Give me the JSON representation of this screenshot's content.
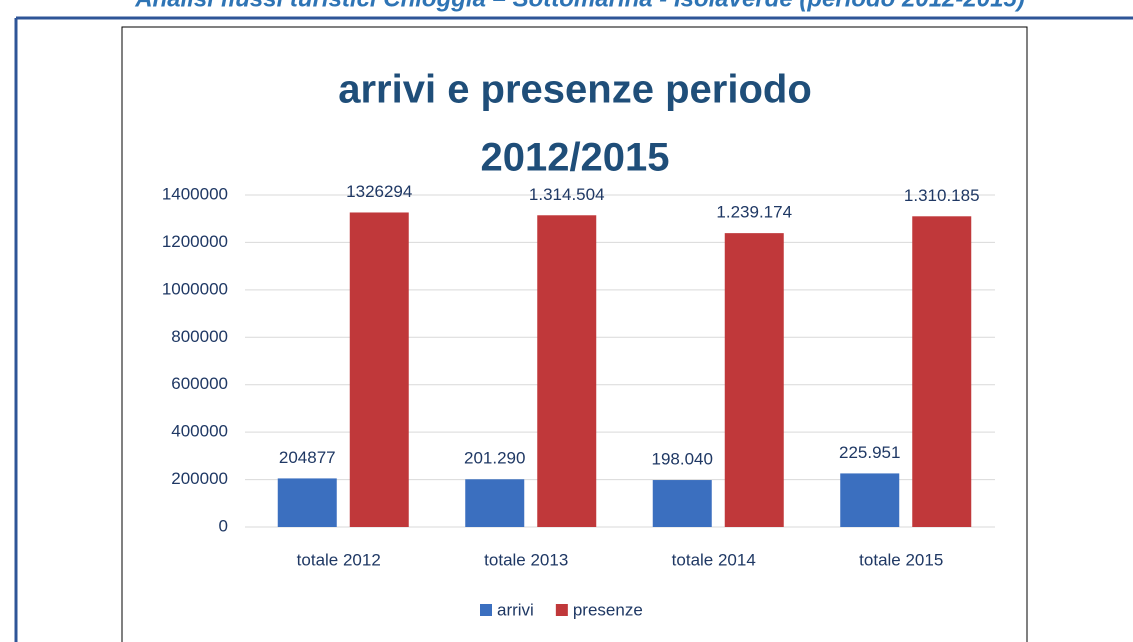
{
  "header": {
    "title": "Analisi flussi turistici Chioggia – Sottomarina - Isolaverde (periodo 2012-2015)"
  },
  "chart_data": {
    "type": "bar",
    "title": [
      "arrivi e presenze periodo",
      "2012/2015"
    ],
    "categories": [
      "totale 2012",
      "totale 2013",
      "totale 2014",
      "totale 2015"
    ],
    "series": [
      {
        "name": "arrivi",
        "color": "#3b6fbf",
        "values": [
          204877,
          201290,
          198040,
          225951
        ],
        "value_labels": [
          "204877",
          "201.290",
          "198.040",
          "225.951"
        ]
      },
      {
        "name": "presenze",
        "color": "#c0383a",
        "values": [
          1326294,
          1314504,
          1239174,
          1310185
        ],
        "value_labels": [
          "1326294",
          "1.314.504",
          "1.239.174",
          "1.310.185"
        ]
      }
    ],
    "ylim": [
      0,
      1400000
    ],
    "yticks": [
      0,
      200000,
      400000,
      600000,
      800000,
      1000000,
      1200000,
      1400000
    ],
    "grid": true,
    "legend": "bottom"
  }
}
